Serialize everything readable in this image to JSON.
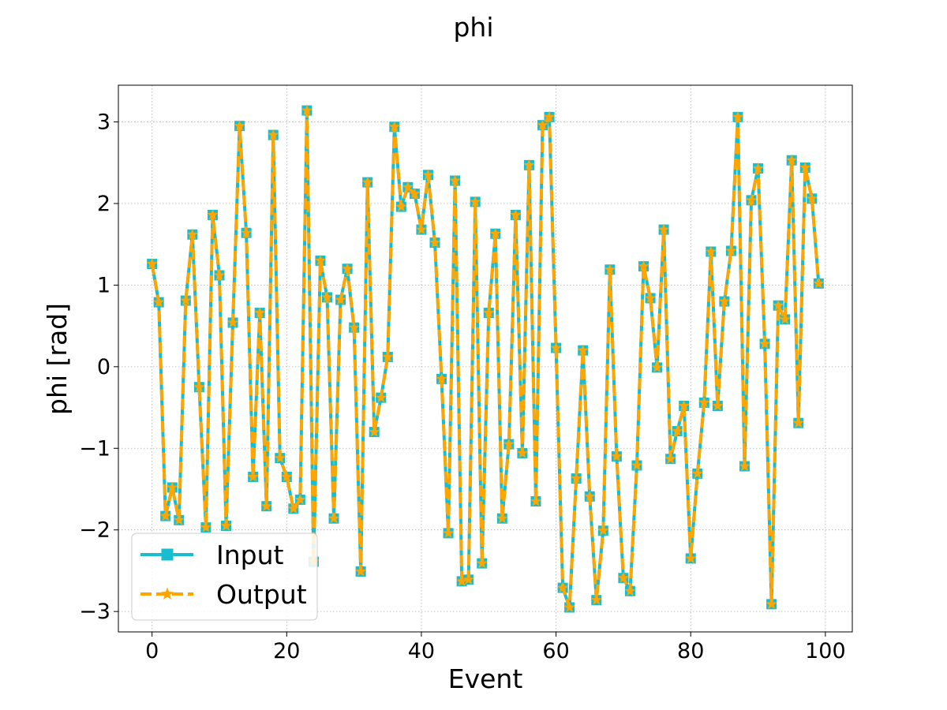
{
  "chart_data": {
    "type": "line",
    "title": "phi",
    "xlabel": "Event",
    "ylabel": "phi [rad]",
    "xlim": [
      -5,
      104
    ],
    "ylim": [
      -3.25,
      3.45
    ],
    "xticks": [
      0,
      20,
      40,
      60,
      80,
      100
    ],
    "yticks": [
      -3,
      -2,
      -1,
      0,
      1,
      2,
      3
    ],
    "xtick_labels": [
      "0",
      "20",
      "40",
      "60",
      "80",
      "100"
    ],
    "ytick_labels": [
      "−3",
      "−2",
      "−1",
      "0",
      "1",
      "2",
      "3"
    ],
    "grid": true,
    "legend_position": "lower-left",
    "x": [
      0,
      1,
      2,
      3,
      4,
      5,
      6,
      7,
      8,
      9,
      10,
      11,
      12,
      13,
      14,
      15,
      16,
      17,
      18,
      19,
      20,
      21,
      22,
      23,
      24,
      25,
      26,
      27,
      28,
      29,
      30,
      31,
      32,
      33,
      34,
      35,
      36,
      37,
      38,
      39,
      40,
      41,
      42,
      43,
      44,
      45,
      46,
      47,
      48,
      49,
      50,
      51,
      52,
      53,
      54,
      55,
      56,
      57,
      58,
      59,
      60,
      61,
      62,
      63,
      64,
      65,
      66,
      67,
      68,
      69,
      70,
      71,
      72,
      73,
      74,
      75,
      76,
      77,
      78,
      79,
      80,
      81,
      82,
      83,
      84,
      85,
      86,
      87,
      88,
      89,
      90,
      91,
      92,
      93,
      94,
      95,
      96,
      97,
      98,
      99
    ],
    "series": [
      {
        "name": "Input",
        "color": "#17becf",
        "marker": "square",
        "line_style": "solid",
        "values": [
          1.26,
          0.79,
          -1.83,
          -1.48,
          -1.88,
          0.81,
          1.62,
          -0.25,
          -1.97,
          1.86,
          1.12,
          -1.95,
          0.54,
          2.95,
          1.64,
          -1.35,
          0.66,
          -1.71,
          2.84,
          -1.12,
          -1.35,
          -1.74,
          -1.63,
          3.14,
          -2.39,
          1.3,
          0.85,
          -1.86,
          0.82,
          1.2,
          0.48,
          -2.51,
          2.26,
          -0.8,
          -0.38,
          0.12,
          2.94,
          1.96,
          2.2,
          2.12,
          1.68,
          2.35,
          1.52,
          -0.15,
          -2.04,
          2.28,
          -2.63,
          -2.61,
          2.02,
          -2.41,
          0.66,
          1.63,
          -1.86,
          -0.95,
          1.86,
          -1.06,
          2.47,
          -1.65,
          2.96,
          3.06,
          0.23,
          -2.71,
          -2.95,
          -1.37,
          0.2,
          -1.59,
          -2.86,
          -2.01,
          1.19,
          -1.1,
          -2.59,
          -2.75,
          -1.21,
          1.23,
          0.84,
          -0.01,
          1.68,
          -1.13,
          -0.79,
          -0.48,
          -2.35,
          -1.31,
          -0.44,
          1.41,
          -0.48,
          0.8,
          1.42,
          3.06,
          -1.22,
          2.04,
          2.43,
          0.28,
          -2.91,
          0.75,
          0.58,
          2.53,
          -0.69,
          2.44,
          2.06,
          1.02
        ]
      },
      {
        "name": "Output",
        "color": "#ffa500",
        "marker": "star",
        "line_style": "dashed",
        "values": [
          1.26,
          0.79,
          -1.83,
          -1.48,
          -1.88,
          0.81,
          1.62,
          -0.25,
          -1.97,
          1.86,
          1.12,
          -1.95,
          0.54,
          2.95,
          1.64,
          -1.35,
          0.66,
          -1.71,
          2.84,
          -1.12,
          -1.35,
          -1.74,
          -1.63,
          3.14,
          -2.39,
          1.3,
          0.85,
          -1.86,
          0.82,
          1.2,
          0.48,
          -2.51,
          2.26,
          -0.8,
          -0.38,
          0.12,
          2.94,
          1.96,
          2.2,
          2.12,
          1.68,
          2.35,
          1.52,
          -0.15,
          -2.04,
          2.28,
          -2.63,
          -2.61,
          2.02,
          -2.41,
          0.66,
          1.63,
          -1.86,
          -0.95,
          1.86,
          -1.06,
          2.47,
          -1.65,
          2.96,
          3.06,
          0.23,
          -2.71,
          -2.95,
          -1.37,
          0.2,
          -1.59,
          -2.86,
          -2.01,
          1.19,
          -1.1,
          -2.59,
          -2.75,
          -1.21,
          1.23,
          0.84,
          -0.01,
          1.68,
          -1.13,
          -0.79,
          -0.48,
          -2.35,
          -1.31,
          -0.44,
          1.41,
          -0.48,
          0.8,
          1.42,
          3.06,
          -1.22,
          2.04,
          2.43,
          0.28,
          -2.91,
          0.75,
          0.58,
          2.53,
          -0.69,
          2.44,
          2.06,
          1.02
        ]
      }
    ]
  }
}
